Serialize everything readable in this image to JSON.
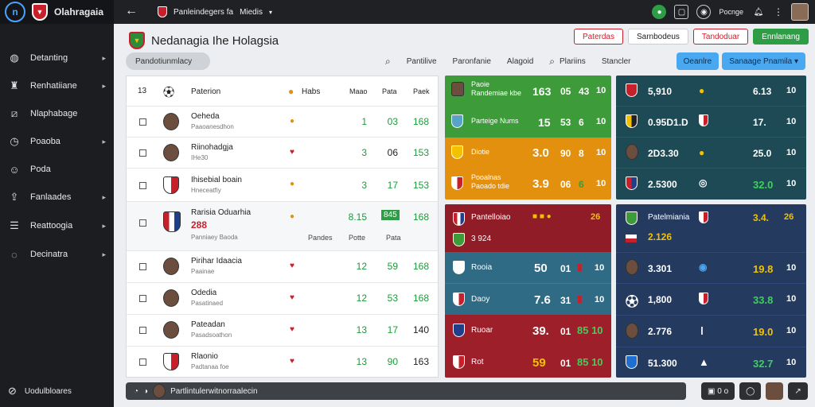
{
  "app": {
    "brand": "Olahragaia",
    "logo_letter": "n"
  },
  "sidebar": {
    "items": [
      {
        "label": "Detanting",
        "icon": "globe-icon",
        "chev": true
      },
      {
        "label": "Renhatiiane",
        "icon": "trophy-icon",
        "chev": true
      },
      {
        "label": "Nlaphabage",
        "icon": "chart-icon",
        "chev": false
      },
      {
        "label": "Poaoba",
        "icon": "clock-icon",
        "chev": true
      },
      {
        "label": "Poda",
        "icon": "user-icon",
        "chev": false
      },
      {
        "label": "Fanlaades",
        "icon": "share-icon",
        "chev": true
      },
      {
        "label": "Reattoogia",
        "icon": "list-icon",
        "chev": true
      },
      {
        "label": "Decinatra",
        "icon": "chat-icon",
        "chev": true
      }
    ],
    "footer": "Uodulbloares"
  },
  "topbar": {
    "breadcrumb_a": "Panleindegers fa",
    "breadcrumb_b": "Miedis",
    "user": "Pocnge"
  },
  "header": {
    "title": "Nedanagia Ihe Holagsia",
    "buttons": [
      "Paterdas",
      "Sarnbodeus",
      "Tandoduar",
      "Ennlanang"
    ],
    "search_label": "Pandotiunmlacy",
    "filters": [
      "Pantilive",
      "Paronfanie",
      "Alagoid",
      "Plariins",
      "Stancler"
    ],
    "blue_buttons": [
      "Oeanlre",
      "Sanaage Pnamila"
    ]
  },
  "table": {
    "head": {
      "name": "Paterion",
      "col0": "Habs",
      "col1": "Maao",
      "col2": "Pata",
      "col3": "Paek"
    },
    "rows": [
      {
        "name": "Oeheda",
        "sub": "Paaoanesdhon",
        "type": "player",
        "c1": "1",
        "c2": "03",
        "c3": "168"
      },
      {
        "name": "Riinohadgja",
        "sub": "IHe30",
        "type": "player",
        "c1": "3",
        "c2": "06",
        "c3": "153"
      },
      {
        "name": "Ihisebial boain",
        "sub": "Hneceatfiy",
        "type": "crest",
        "c1": "3",
        "c2": "17",
        "c3": "153"
      },
      {
        "name": "Rarisia Oduarhia",
        "sub": "Panniaey Baoda",
        "type": "crest-big",
        "c1": "8.15",
        "c2": "845",
        "c3": "168",
        "extra": "288",
        "h1": "Pandes",
        "h2": "Potte",
        "h3": "Pata"
      },
      {
        "name": "Pirihar Idaacia",
        "sub": "Paainae",
        "type": "player",
        "c1": "12",
        "c2": "59",
        "c3": "168"
      },
      {
        "name": "Odedia",
        "sub": "Pasatinaed",
        "type": "player",
        "c1": "12",
        "c2": "53",
        "c3": "168"
      },
      {
        "name": "Pateadan",
        "sub": "Pasadsoathon",
        "type": "player",
        "c1": "13",
        "c2": "17",
        "c3": "140"
      },
      {
        "name": "Rlaonio",
        "sub": "Padtanaa foe",
        "type": "crest",
        "c1": "13",
        "c2": "90",
        "c3": "163"
      }
    ]
  },
  "panel_mid_top": {
    "rows": [
      {
        "label": "Paoie Randemiae kbe",
        "a": "163",
        "b": "05",
        "c": "43",
        "d": "10",
        "bg": "#3d9c39"
      },
      {
        "label": "Parteige Nums",
        "a": "15",
        "b": "53",
        "c": "6",
        "d": "10",
        "bg": "#3d9c39"
      },
      {
        "label": "Diotie",
        "a": "3.0",
        "b": "90",
        "c": "8",
        "d": "10",
        "bg": "#e4900f"
      },
      {
        "label": "Pooalnas Paoado tdie",
        "a": "3.9",
        "b": "06",
        "c": "6",
        "d": "10",
        "bg": "#e4900f"
      }
    ]
  },
  "panel_right_top": {
    "rows": [
      {
        "label": "5,910",
        "a": "6.13",
        "b": "10"
      },
      {
        "label": "0.95D1.D",
        "a": "17.",
        "b": "10"
      },
      {
        "label": "2D3.30",
        "a": "25.0",
        "b": "10"
      },
      {
        "label": "2.5300",
        "a": "32.0",
        "b": "10"
      }
    ]
  },
  "panel_mid_bot": {
    "header": "Pantelloiao",
    "sub": "3 924",
    "head_num": "26",
    "rows": [
      {
        "label": "Rooia",
        "a": "50",
        "b": "01",
        "c": "10",
        "bg": "#2f6b84"
      },
      {
        "label": "Daoy",
        "a": "7.6",
        "b": "31",
        "c": "10",
        "bg": "#2f6b84"
      },
      {
        "label": "Ruoar",
        "a": "39.",
        "b": "01",
        "c": "85 10",
        "bg": "#9c1f2a"
      },
      {
        "label": "Rot",
        "a": "59",
        "b": "01",
        "c": "85 10",
        "bg": "#9c1f2a"
      }
    ]
  },
  "panel_right_bot": {
    "header": "Patelmiania",
    "sub": "2.126",
    "head_a": "3.4.",
    "head_b": "26",
    "rows": [
      {
        "label": "3.301",
        "a": "19.8",
        "b": "10"
      },
      {
        "label": "1,800",
        "a": "33.8",
        "b": "10"
      },
      {
        "label": "2.776",
        "a": "19.0",
        "b": "10"
      },
      {
        "label": "51.300",
        "a": "32.7",
        "b": "10"
      }
    ]
  },
  "bottombar": {
    "label": "Partlintulerwitnorraalecin",
    "right_btn": "0 o"
  },
  "colors": {
    "green": "#3d9c39",
    "orange": "#e4900f",
    "red": "#9c1f2a",
    "teal": "#2f6b84",
    "navy": "#243a5e",
    "dark_teal": "#1e4a55"
  }
}
